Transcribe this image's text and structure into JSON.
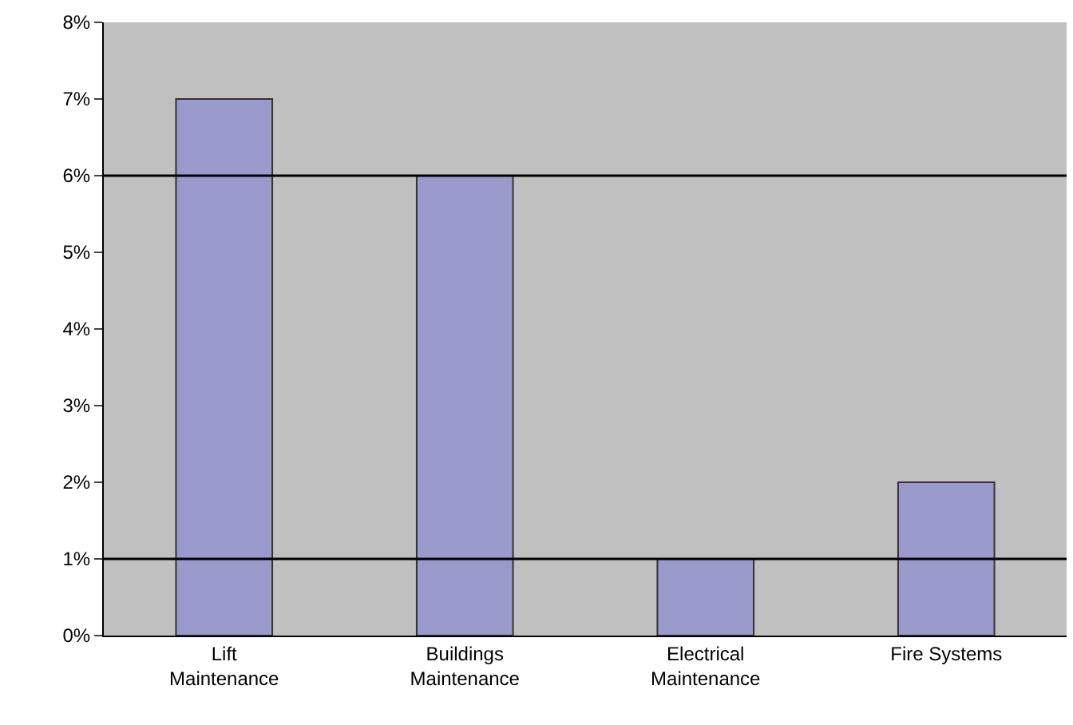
{
  "chart_data": {
    "type": "bar",
    "categories": [
      "Lift Maintenance",
      "Buildings Maintenance",
      "Electrical Maintenance",
      "Fire Systems"
    ],
    "values": [
      7,
      6,
      1,
      2
    ],
    "color": "#9999cc",
    "ylim": [
      0,
      8
    ],
    "yticks": [
      {
        "value": 0,
        "label": "0%"
      },
      {
        "value": 1,
        "label": "1%"
      },
      {
        "value": 2,
        "label": "2%"
      },
      {
        "value": 3,
        "label": "3%"
      },
      {
        "value": 4,
        "label": "4%"
      },
      {
        "value": 5,
        "label": "5%"
      },
      {
        "value": 6,
        "label": "6%"
      },
      {
        "value": 7,
        "label": "7%"
      },
      {
        "value": 8,
        "label": "8%"
      }
    ],
    "ref_lines": [
      {
        "axis": "y",
        "value": 1,
        "color": "#000000"
      },
      {
        "axis": "y",
        "value": 6,
        "color": "#000000"
      }
    ],
    "grid": false
  }
}
